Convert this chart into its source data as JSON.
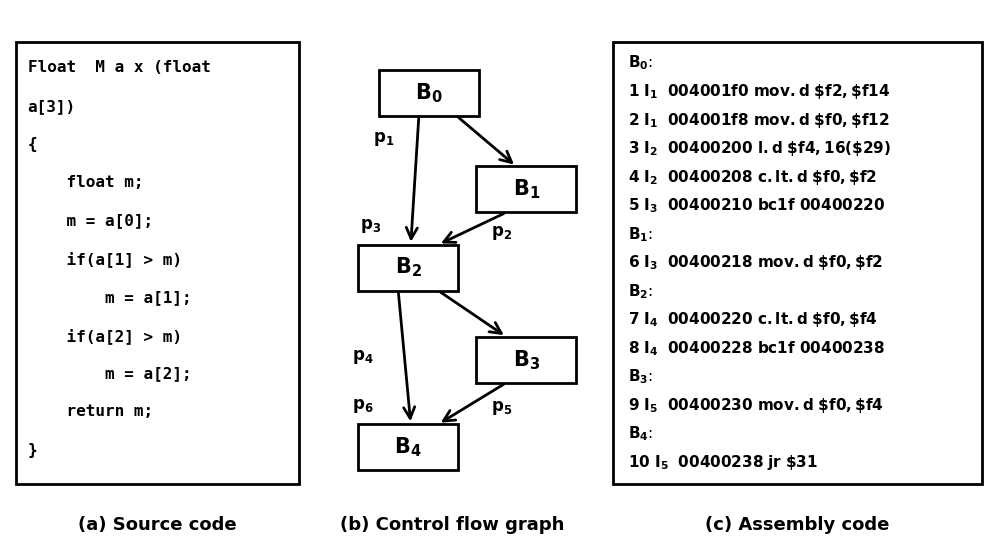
{
  "source_code_lines": [
    "Float  M a x (float",
    "a[3])",
    "{",
    "    float m;",
    "    m = a[0];",
    "    if(a[1] > m)",
    "        m = a[1];",
    "    if(a[2] > m)",
    "        m = a[2];",
    "    return m;",
    "}"
  ],
  "assembly_lines": [
    "B_0_HEADER",
    "1 I_1_  004001f0 mov.d $f2,$f14",
    "2 I_1_  004001f8 mov.d $f0,$f12",
    "3 I_2_  00400200 l.d $f4,16($29)",
    "4 I_2_  00400208 c.lt.d $f0,$f2",
    "5 I_3_  00400210 bc1f 00400220",
    "B_1_HEADER",
    "6 I_3_  00400218 mov.d $f0,$f2",
    "B_2_HEADER",
    "7 I_4_  00400220 c.lt.d $f0,$f4",
    "8 I_4_  00400228 bc1f 00400238",
    "B_3_HEADER",
    "9 I_5_  00400230 mov.d $f0,$f4",
    "B_4_HEADER",
    "10 I_5_  00400238 jr $31"
  ],
  "caption_a": "(a) Source code",
  "caption_b": "(b) Control flow graph",
  "caption_c": "(c) Assembly code",
  "bg_color": "#ffffff"
}
